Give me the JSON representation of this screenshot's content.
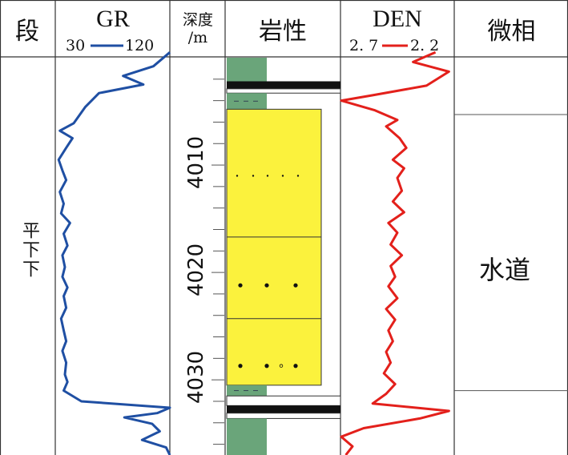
{
  "headers": {
    "segment": "段",
    "gr": "GR",
    "gr_min": "30",
    "gr_max": "120",
    "depth_line1": "深度",
    "depth_line2": "/m",
    "lithology": "岩性",
    "den": "DEN",
    "den_left": "2. 7",
    "den_right": "2. 2",
    "facies": "微相"
  },
  "segment_label": "平下下",
  "facies_label": "水道",
  "depth_ticks": [
    {
      "value": 4010,
      "label": "4010"
    },
    {
      "value": 4020,
      "label": "4020"
    },
    {
      "value": 4030,
      "label": "4030"
    }
  ],
  "colors": {
    "gr_curve": "#1f4fa3",
    "den_curve": "#e3201b",
    "sandstone": "#fbf23d",
    "mudstone": "#6aa57a",
    "calcareous": "#111111",
    "grid": "#333333"
  },
  "chart_data": {
    "type": "well_log",
    "depth_range": [
      4000,
      4037
    ],
    "depth_unit": "m",
    "gr": {
      "scale": [
        30,
        120
      ],
      "points": [
        [
          3999.5,
          120
        ],
        [
          4000.8,
          107
        ],
        [
          4001.7,
          83
        ],
        [
          4002.5,
          99
        ],
        [
          4003.3,
          64
        ],
        [
          4004.6,
          53
        ],
        [
          4006.1,
          44
        ],
        [
          4006.8,
          33
        ],
        [
          4007.5,
          43
        ],
        [
          4008.4,
          38
        ],
        [
          4009.5,
          32
        ],
        [
          4010.5,
          35
        ],
        [
          4011.4,
          38
        ],
        [
          4012.5,
          33
        ],
        [
          4013.6,
          36
        ],
        [
          4014.5,
          34
        ],
        [
          4015.4,
          41
        ],
        [
          4016.4,
          36
        ],
        [
          4017.5,
          39
        ],
        [
          4018.4,
          35
        ],
        [
          4019.5,
          37
        ],
        [
          4020.4,
          35
        ],
        [
          4021.4,
          39
        ],
        [
          4022.2,
          36
        ],
        [
          4023.3,
          38
        ],
        [
          4024.3,
          34
        ],
        [
          4025.4,
          36
        ],
        [
          4026.4,
          38
        ],
        [
          4027.3,
          35
        ],
        [
          4028.4,
          38
        ],
        [
          4029.5,
          37
        ],
        [
          4030.2,
          39
        ],
        [
          4031.0,
          36
        ],
        [
          4032.0,
          50
        ],
        [
          4032.6,
          120
        ],
        [
          4033.1,
          110
        ],
        [
          4033.5,
          84
        ],
        [
          4034.1,
          106
        ],
        [
          4034.8,
          112
        ],
        [
          4035.6,
          98
        ],
        [
          4036.3,
          117
        ],
        [
          4037.0,
          120
        ]
      ]
    },
    "den": {
      "scale": [
        2.7,
        2.2
      ],
      "points": [
        [
          3999.5,
          2.28
        ],
        [
          4000.4,
          2.38
        ],
        [
          4001.3,
          2.22
        ],
        [
          4002.6,
          2.32
        ],
        [
          4003.5,
          2.56
        ],
        [
          4004.0,
          2.7
        ],
        [
          4004.9,
          2.55
        ],
        [
          4005.8,
          2.45
        ],
        [
          4006.4,
          2.5
        ],
        [
          4007.5,
          2.44
        ],
        [
          4008.4,
          2.41
        ],
        [
          4009.5,
          2.47
        ],
        [
          4010.3,
          2.42
        ],
        [
          4011.2,
          2.45
        ],
        [
          4012.4,
          2.43
        ],
        [
          4013.4,
          2.47
        ],
        [
          4014.4,
          2.42
        ],
        [
          4015.4,
          2.49
        ],
        [
          4016.3,
          2.45
        ],
        [
          4017.4,
          2.48
        ],
        [
          4018.4,
          2.43
        ],
        [
          4019.4,
          2.48
        ],
        [
          4020.4,
          2.46
        ],
        [
          4021.3,
          2.49
        ],
        [
          4022.4,
          2.45
        ],
        [
          4023.4,
          2.5
        ],
        [
          4024.4,
          2.46
        ],
        [
          4025.4,
          2.49
        ],
        [
          4026.4,
          2.47
        ],
        [
          4027.4,
          2.5
        ],
        [
          4028.4,
          2.48
        ],
        [
          4029.4,
          2.51
        ],
        [
          4030.4,
          2.46
        ],
        [
          4031.3,
          2.5
        ],
        [
          4032.2,
          2.56
        ],
        [
          4032.9,
          2.22
        ],
        [
          4033.6,
          2.35
        ],
        [
          4034.5,
          2.6
        ],
        [
          4035.3,
          2.7
        ],
        [
          4036.2,
          2.65
        ],
        [
          4037.0,
          2.68
        ]
      ]
    },
    "lithology": [
      {
        "top": 4000,
        "bottom": 4002.2,
        "rock": "mudstone"
      },
      {
        "top": 4002.2,
        "bottom": 4002.9,
        "rock": "calcareous"
      },
      {
        "top": 4002.9,
        "bottom": 4003.3,
        "rock": "white"
      },
      {
        "top": 4003.3,
        "bottom": 4004.8,
        "rock": "mudstone_silty"
      },
      {
        "top": 4004.8,
        "bottom": 4030.5,
        "rock": "sandstone"
      },
      {
        "top": 4030.5,
        "bottom": 4031.5,
        "rock": "mudstone_silty"
      },
      {
        "top": 4031.5,
        "bottom": 4032.4,
        "rock": "white"
      },
      {
        "top": 4032.4,
        "bottom": 4033.1,
        "rock": "calcareous"
      },
      {
        "top": 4033.1,
        "bottom": 4033.6,
        "rock": "white"
      },
      {
        "top": 4033.6,
        "bottom": 4037,
        "rock": "mudstone"
      }
    ],
    "sand_subdivisions": [
      4016.7,
      4024.3
    ],
    "facies_boundaries": [
      4005.3,
      4031.0
    ]
  }
}
